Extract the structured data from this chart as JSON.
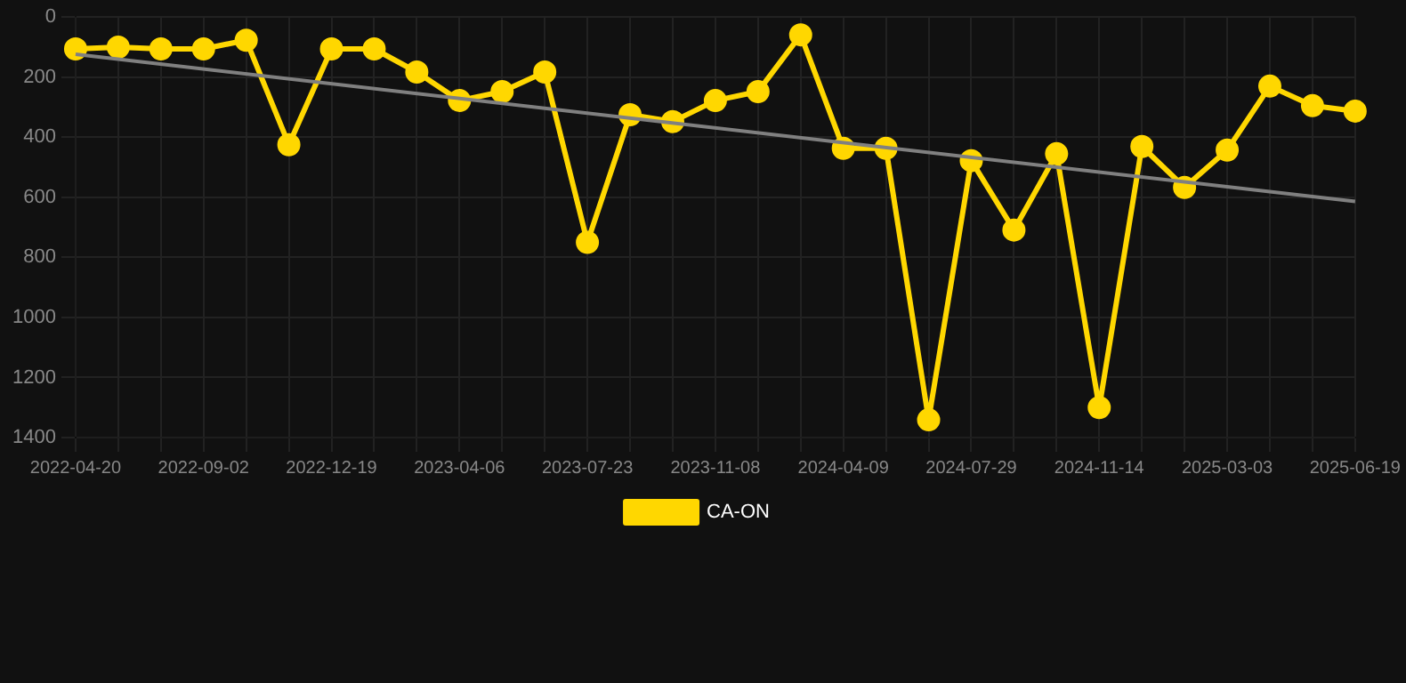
{
  "chart_data": {
    "type": "line",
    "categories": [
      "2022-04-20",
      null,
      null,
      "2022-09-02",
      null,
      null,
      "2022-12-19",
      null,
      null,
      "2023-04-06",
      null,
      null,
      "2023-07-23",
      null,
      null,
      "2023-11-08",
      null,
      null,
      "2024-04-09",
      null,
      null,
      "2024-07-29",
      null,
      null,
      "2024-11-14",
      null,
      null,
      "2025-03-03",
      null,
      null,
      "2025-06-19"
    ],
    "series": [
      {
        "name": "CA-ON",
        "color": "#ffd700",
        "values": [
          106,
          100,
          106,
          106,
          77,
          425,
          106,
          106,
          183,
          278,
          248,
          183,
          750,
          325,
          348,
          278,
          248,
          59,
          437,
          437,
          1341,
          478,
          709,
          455,
          1300,
          431,
          567,
          443,
          230,
          295,
          313
        ]
      },
      {
        "color": "#808080",
        "type": "line",
        "marker": "none",
        "values": [
          124,
          null,
          null,
          null,
          null,
          null,
          null,
          null,
          null,
          null,
          null,
          null,
          null,
          null,
          null,
          null,
          null,
          null,
          null,
          null,
          null,
          null,
          null,
          null,
          null,
          null,
          null,
          null,
          null,
          null,
          614
        ]
      }
    ],
    "ylim": [
      1400,
      0
    ],
    "yticks": [
      0,
      200,
      400,
      600,
      800,
      1000,
      1200,
      1400
    ],
    "grid": true,
    "legend": "bottom",
    "marker": "circle",
    "line_style": "solid"
  }
}
